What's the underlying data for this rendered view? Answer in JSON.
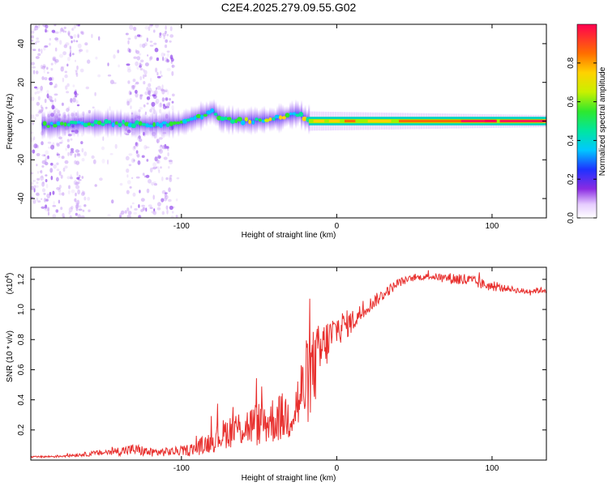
{
  "title": "C2E4.2025.279.09.55.G02",
  "chart_data": [
    {
      "type": "heatmap",
      "title": "C2E4.2025.279.09.55.G02",
      "xlabel": "Height of straight line (km)",
      "ylabel": "Frequency (Hz)",
      "xlim": [
        -197,
        135
      ],
      "ylim": [
        -50,
        50
      ],
      "xticks": [
        -100,
        0,
        100
      ],
      "xtick_labels": [
        "-100",
        "0",
        "100"
      ],
      "yticks": [
        -40,
        -20,
        0,
        20,
        40
      ],
      "ytick_labels": [
        "-40",
        "-20",
        "0",
        "20",
        "40"
      ],
      "colorbar": {
        "label": "Normalized spectral amplitude",
        "range": [
          0,
          1
        ],
        "ticks": [
          0,
          0.2,
          0.4,
          0.6,
          0.8
        ],
        "tick_labels": [
          "0.0",
          "0.2",
          "0.4",
          "0.6",
          "0.8"
        ]
      },
      "ridge": {
        "description": "dominant frequency track",
        "x": [
          -185,
          -160,
          -140,
          -120,
          -100,
          -80,
          -75,
          -60,
          -40,
          -25,
          -20,
          0,
          20,
          50,
          80,
          100,
          135
        ],
        "freq": [
          -2,
          -1,
          -1,
          -2,
          -1,
          5,
          1,
          0,
          1,
          4,
          1,
          0,
          0,
          0,
          0,
          0,
          0
        ]
      }
    },
    {
      "type": "line",
      "xlabel": "Height of straight line (km)",
      "ylabel": "SNR (10 * v/v)",
      "multiplier_label": "(x10",
      "multiplier_exp": "4",
      "xlim": [
        -197,
        135
      ],
      "ylim": [
        0,
        1.28
      ],
      "xticks": [
        -100,
        0,
        100
      ],
      "xtick_labels": [
        "-100",
        "0",
        "100"
      ],
      "yticks": [
        0.2,
        0.4,
        0.6,
        0.8,
        1.0,
        1.2
      ],
      "ytick_labels": [
        "0.2",
        "0.4",
        "0.6",
        "0.8",
        "1.0",
        "1.2"
      ],
      "series": [
        {
          "name": "SNR",
          "color": "#e8302e",
          "x": [
            -197,
            -180,
            -160,
            -140,
            -130,
            -120,
            -100,
            -90,
            -80,
            -70,
            -60,
            -50,
            -40,
            -30,
            -25,
            -20,
            -15,
            -10,
            -5,
            0,
            10,
            20,
            30,
            40,
            50,
            60,
            70,
            80,
            90,
            100,
            110,
            120,
            135
          ],
          "y": [
            0.02,
            0.025,
            0.04,
            0.06,
            0.07,
            0.05,
            0.06,
            0.08,
            0.13,
            0.19,
            0.22,
            0.24,
            0.27,
            0.3,
            0.38,
            0.5,
            0.6,
            0.72,
            0.8,
            0.87,
            0.92,
            1.02,
            1.1,
            1.18,
            1.21,
            1.22,
            1.21,
            1.2,
            1.18,
            1.15,
            1.14,
            1.12,
            1.13
          ],
          "noise": [
            0.005,
            0.008,
            0.015,
            0.03,
            0.04,
            0.03,
            0.03,
            0.05,
            0.08,
            0.11,
            0.13,
            0.15,
            0.16,
            0.17,
            0.22,
            0.3,
            0.28,
            0.2,
            0.15,
            0.12,
            0.08,
            0.05,
            0.04,
            0.03,
            0.02,
            0.02,
            0.03,
            0.05,
            0.04,
            0.03,
            0.02,
            0.02,
            0.02
          ]
        }
      ]
    }
  ]
}
